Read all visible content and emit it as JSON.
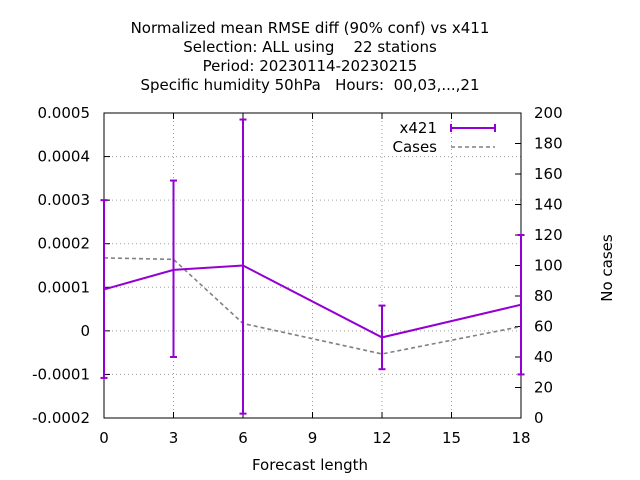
{
  "chart_data": {
    "type": "line",
    "title_lines": [
      "Normalized mean RMSE diff (90% conf) vs x411",
      "Selection: ALL using    22 stations",
      "Period: 20230114-20230215",
      "Specific humidity 50hPa   Hours:  00,03,...,21"
    ],
    "xlabel": "Forecast length",
    "ylabel_right": "No cases",
    "xlim": [
      0,
      18
    ],
    "ylim": [
      -0.0002,
      0.0005
    ],
    "y2lim": [
      0,
      200
    ],
    "xticks": [
      0,
      3,
      6,
      9,
      12,
      15,
      18
    ],
    "xtick_labels": [
      "0",
      "3",
      "6",
      "9",
      "12",
      "15",
      "18"
    ],
    "yticks": [
      -0.0002,
      -0.0001,
      0,
      0.0001,
      0.0002,
      0.0003,
      0.0004,
      0.0005
    ],
    "ytick_labels": [
      "-0.0002",
      "-0.0001",
      "0",
      "0.0001",
      "0.0002",
      "0.0003",
      "0.0004",
      "0.0005"
    ],
    "y2ticks": [
      0,
      20,
      40,
      60,
      80,
      100,
      120,
      140,
      160,
      180,
      200
    ],
    "y2tick_labels": [
      "0",
      "20",
      "40",
      "60",
      "80",
      "100",
      "120",
      "140",
      "160",
      "180",
      "200"
    ],
    "grid": true,
    "legend_position": "top-right",
    "series": [
      {
        "name": "x421",
        "color": "#9400d3",
        "axis": "left",
        "style": "line-errorbars",
        "x": [
          0,
          3,
          6,
          12,
          18
        ],
        "y": [
          9.5e-05,
          0.00014,
          0.00015,
          -1.5e-05,
          6e-05
        ],
        "err_low": [
          -0.000108,
          -6e-05,
          -0.00019,
          -8.8e-05,
          -0.0001
        ],
        "err_high": [
          0.0003,
          0.000345,
          0.000485,
          5.8e-05,
          0.00022
        ]
      },
      {
        "name": "Cases",
        "color": "#808080",
        "axis": "right",
        "style": "dashed",
        "x": [
          0,
          3,
          6,
          12,
          18
        ],
        "y": [
          105,
          104,
          62,
          42,
          60
        ]
      }
    ]
  }
}
